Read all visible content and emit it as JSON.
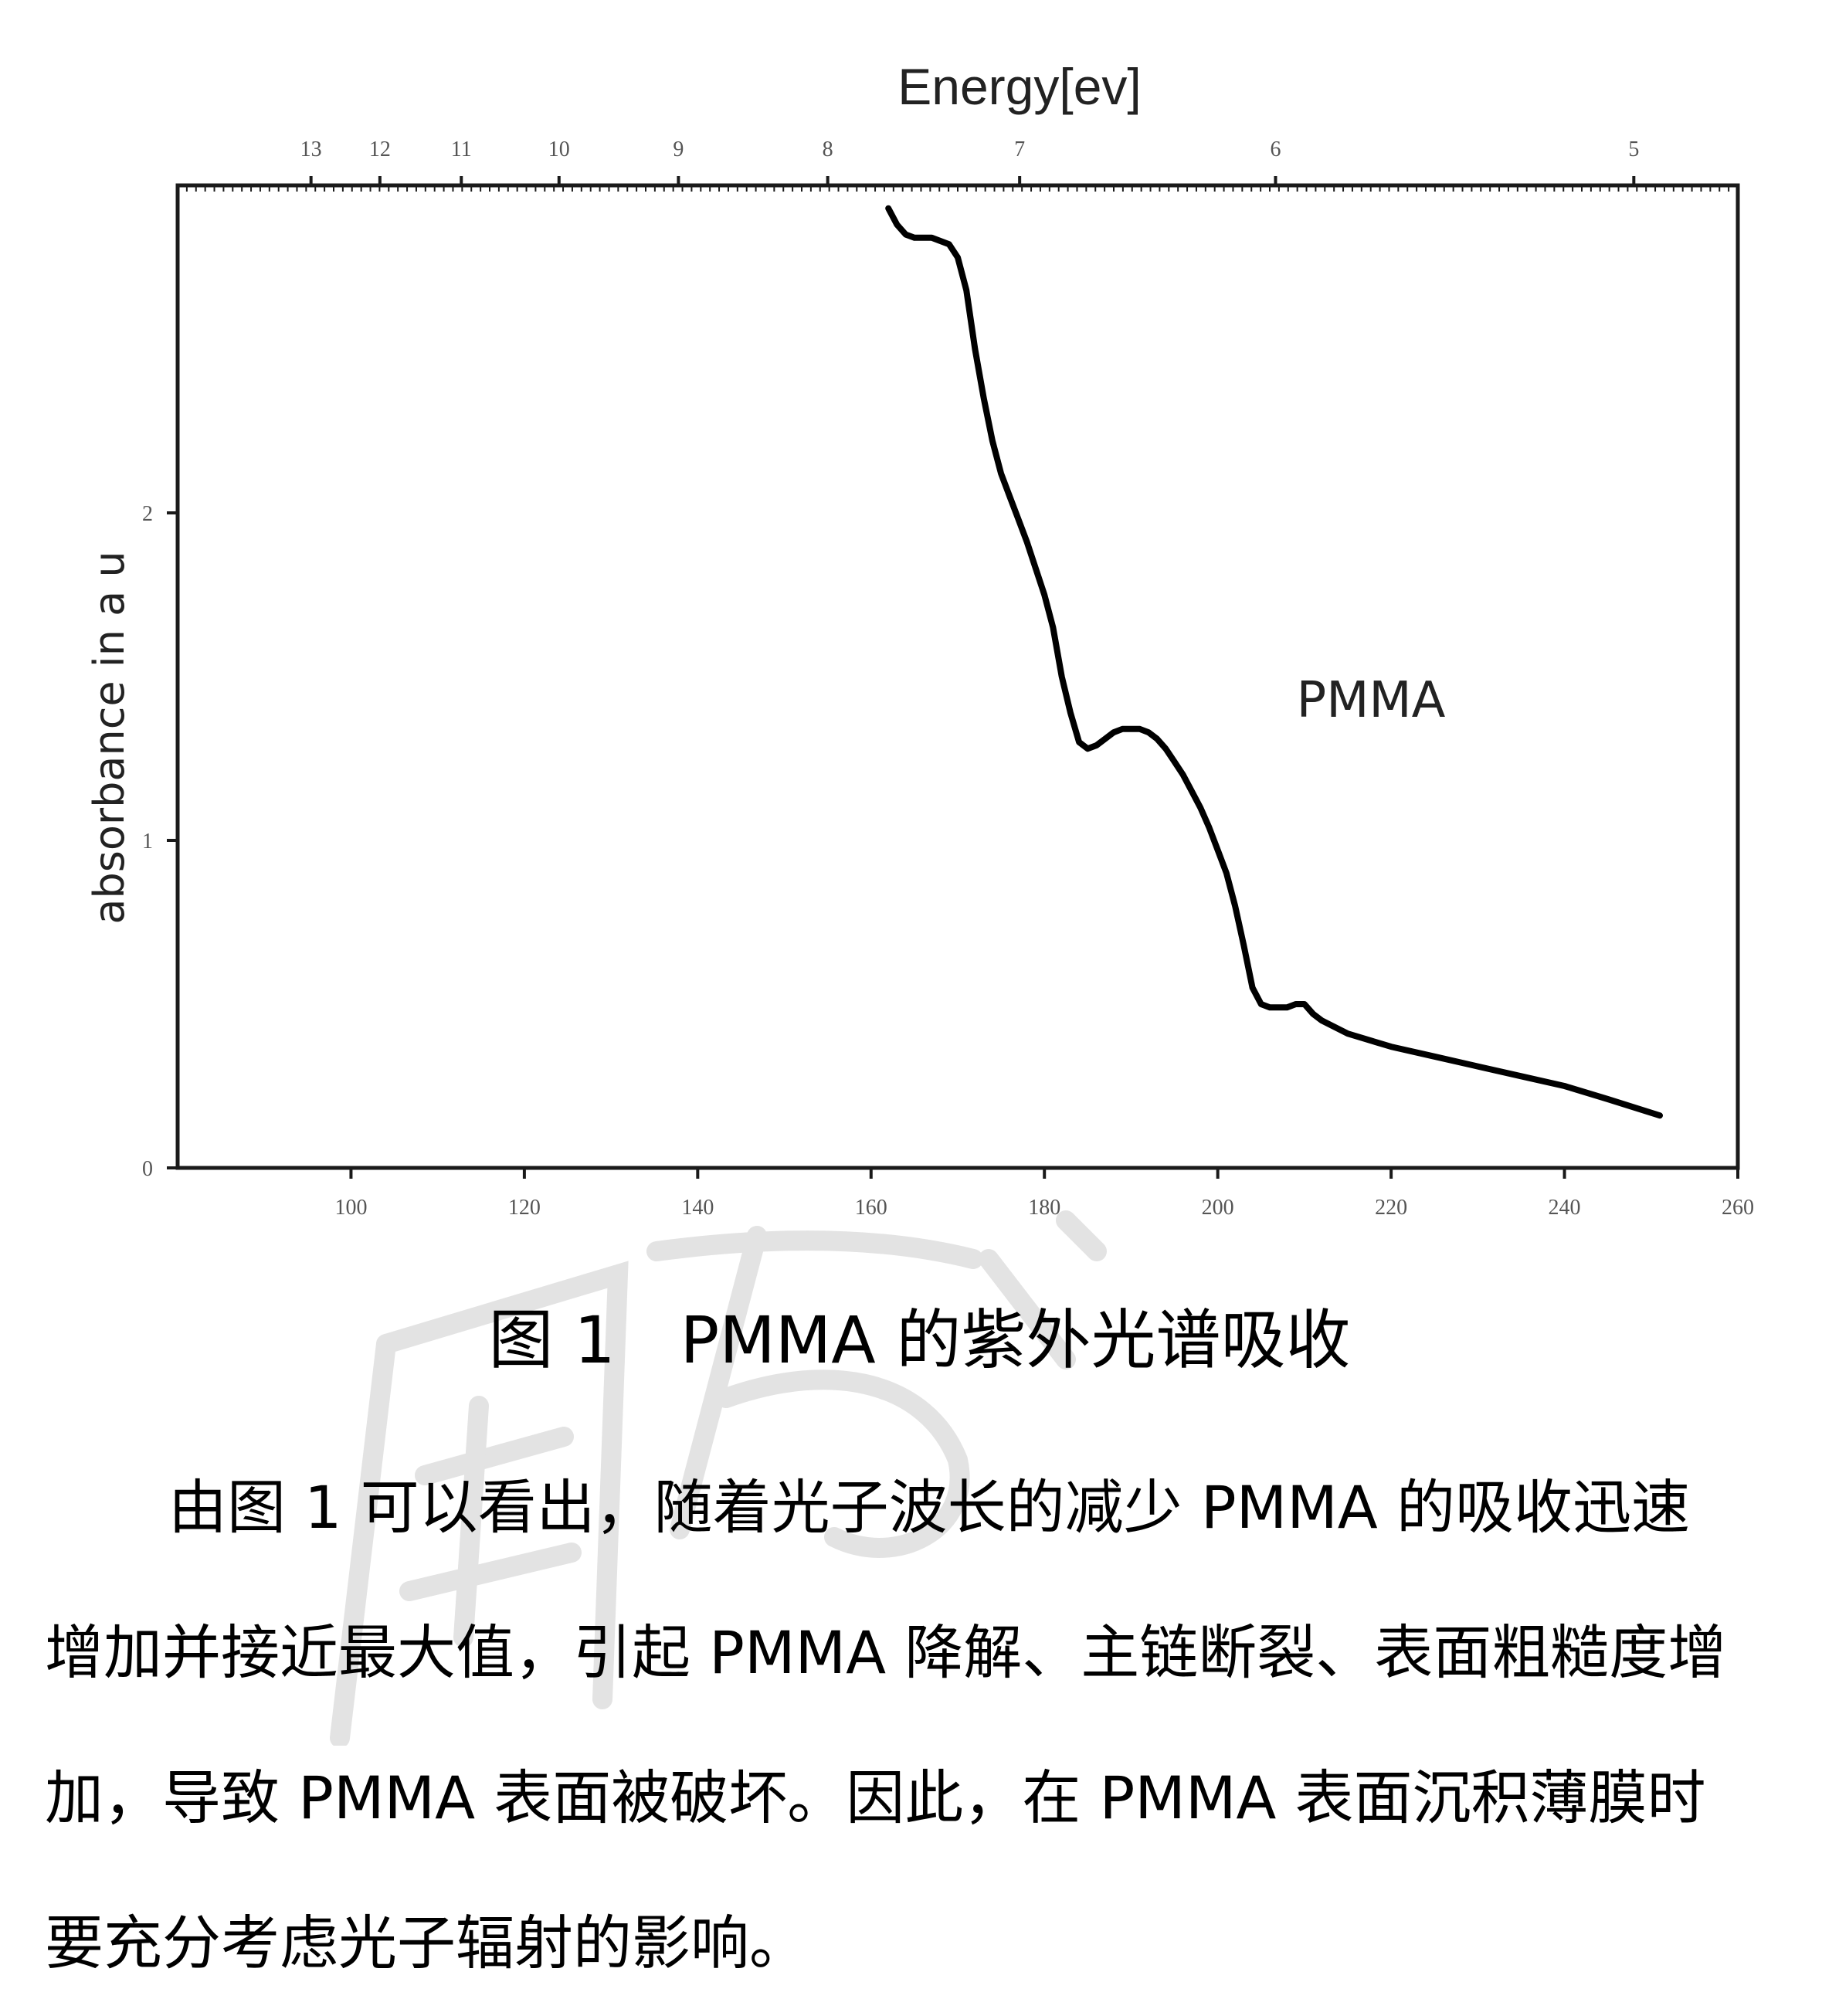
{
  "figure": {
    "caption": "图 1　PMMA 的紫外光谱吸收",
    "chart_data": {
      "type": "line",
      "title": "",
      "top_axis_label": "Energy[ev]",
      "top_axis_ticks": [
        "13",
        "12",
        "11",
        "10",
        "9",
        "8",
        "7",
        "6",
        "5"
      ],
      "xlabel": "",
      "ylabel": "absorbance in a u",
      "x_ticks": [
        "100",
        "120",
        "140",
        "160",
        "180",
        "200",
        "220",
        "240",
        "260"
      ],
      "y_ticks": [
        "0",
        "1",
        "2"
      ],
      "xlim": [
        80,
        260
      ],
      "ylim": [
        0,
        3.0
      ],
      "annotation": "PMMA",
      "series": [
        {
          "name": "",
          "x": [
            162,
            163,
            164,
            165,
            167,
            169,
            170,
            171,
            172,
            173,
            174,
            175,
            176,
            177,
            178,
            179,
            180,
            181,
            182,
            183,
            184,
            185,
            186,
            187,
            188,
            189,
            190,
            191,
            192,
            193,
            194,
            195,
            196,
            197,
            198,
            199,
            200,
            201,
            202,
            203,
            204,
            205,
            206,
            207,
            208,
            209,
            210,
            211,
            212,
            215,
            220,
            225,
            230,
            235,
            240,
            245,
            251
          ],
          "y": [
            2.93,
            2.88,
            2.85,
            2.84,
            2.84,
            2.82,
            2.78,
            2.68,
            2.5,
            2.35,
            2.22,
            2.12,
            2.05,
            1.98,
            1.91,
            1.83,
            1.75,
            1.65,
            1.5,
            1.39,
            1.3,
            1.28,
            1.29,
            1.31,
            1.33,
            1.34,
            1.34,
            1.34,
            1.33,
            1.31,
            1.28,
            1.24,
            1.2,
            1.15,
            1.1,
            1.04,
            0.97,
            0.9,
            0.8,
            0.68,
            0.55,
            0.5,
            0.49,
            0.49,
            0.49,
            0.5,
            0.5,
            0.47,
            0.45,
            0.41,
            0.37,
            0.34,
            0.31,
            0.28,
            0.25,
            0.21,
            0.16
          ]
        }
      ]
    }
  },
  "paragraph": {
    "lines": [
      "由图 1 可以看出，随着光子波长的减少 PMMA 的吸收迅速",
      "增加并接近最大值，引起 PMMA 降解、主链断裂、表面粗糙度增",
      "加，导致 PMMA 表面被破坏。因此，在 PMMA 表面沉积薄膜时",
      "要充分考虑光子辐射的影响。"
    ]
  },
  "colors": {
    "ink": "#000000",
    "watermark": "#e3e3e3",
    "tick_label": "#555555"
  }
}
